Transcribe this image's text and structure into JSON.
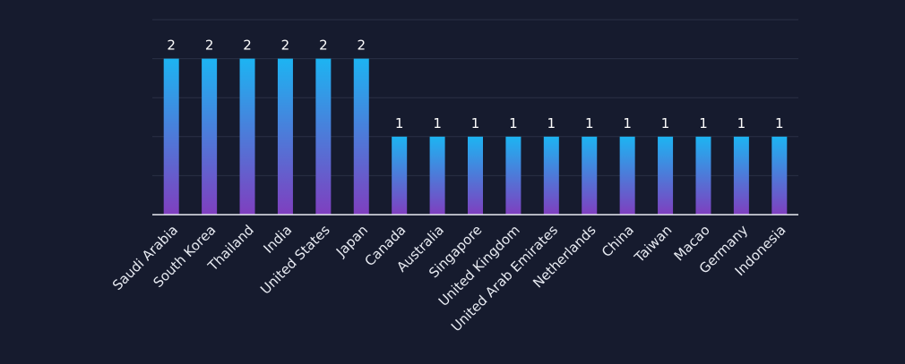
{
  "chart_data": {
    "type": "bar",
    "title": "",
    "xlabel": "",
    "ylabel": "",
    "categories": [
      "Saudi Arabia",
      "South Korea",
      "Thailand",
      "India",
      "United States",
      "Japan",
      "Canada",
      "Australia",
      "Singapore",
      "United Kingdom",
      "United Arab Emirates",
      "Netherlands",
      "China",
      "Taiwan",
      "Macao",
      "Germany",
      "Indonesia"
    ],
    "values": [
      2,
      2,
      2,
      2,
      2,
      2,
      1,
      1,
      1,
      1,
      1,
      1,
      1,
      1,
      1,
      1,
      1
    ],
    "ylim": [
      0,
      2.5
    ],
    "grid": true,
    "data_labels": true,
    "colors": {
      "background": "#161b2e",
      "bar_top": "#1db4f2",
      "bar_bottom": "#7f3fbf",
      "grid": "#2a3045",
      "text": "#e8ebf2"
    }
  }
}
